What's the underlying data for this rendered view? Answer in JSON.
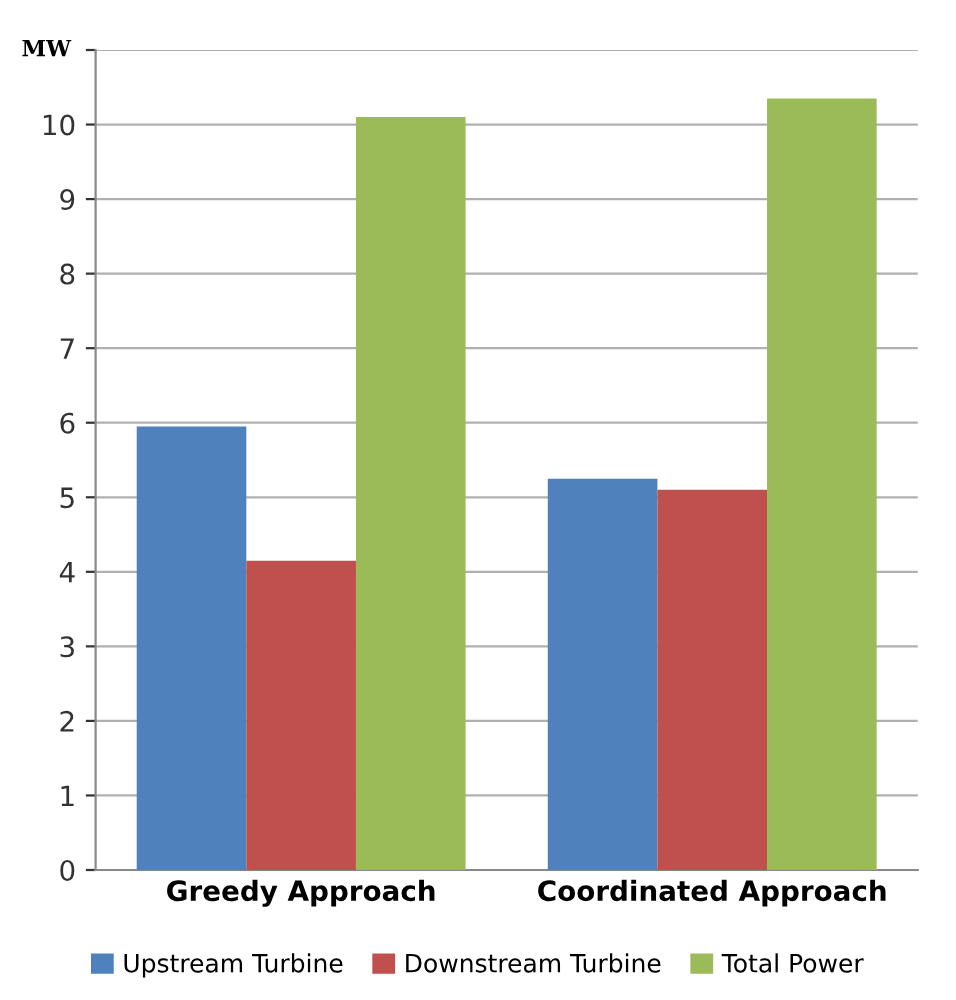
{
  "chart_data": {
    "type": "bar",
    "ylabel": "MW",
    "categories": [
      "Greedy Approach",
      "Coordinated Approach"
    ],
    "series": [
      {
        "name": "Upstream Turbine",
        "color": "#4f81bd",
        "values": [
          5.95,
          5.25
        ]
      },
      {
        "name": "Downstream Turbine",
        "color": "#c0504d",
        "values": [
          4.15,
          5.1
        ]
      },
      {
        "name": "Total Power",
        "color": "#9bbb59",
        "values": [
          10.1,
          10.35
        ]
      }
    ],
    "ylim": [
      0,
      11
    ],
    "yticks": [
      0,
      1,
      2,
      3,
      4,
      5,
      6,
      7,
      8,
      9,
      10,
      {
        "value": 11,
        "label": null
      }
    ],
    "grid": "y",
    "legend": "bottom"
  }
}
